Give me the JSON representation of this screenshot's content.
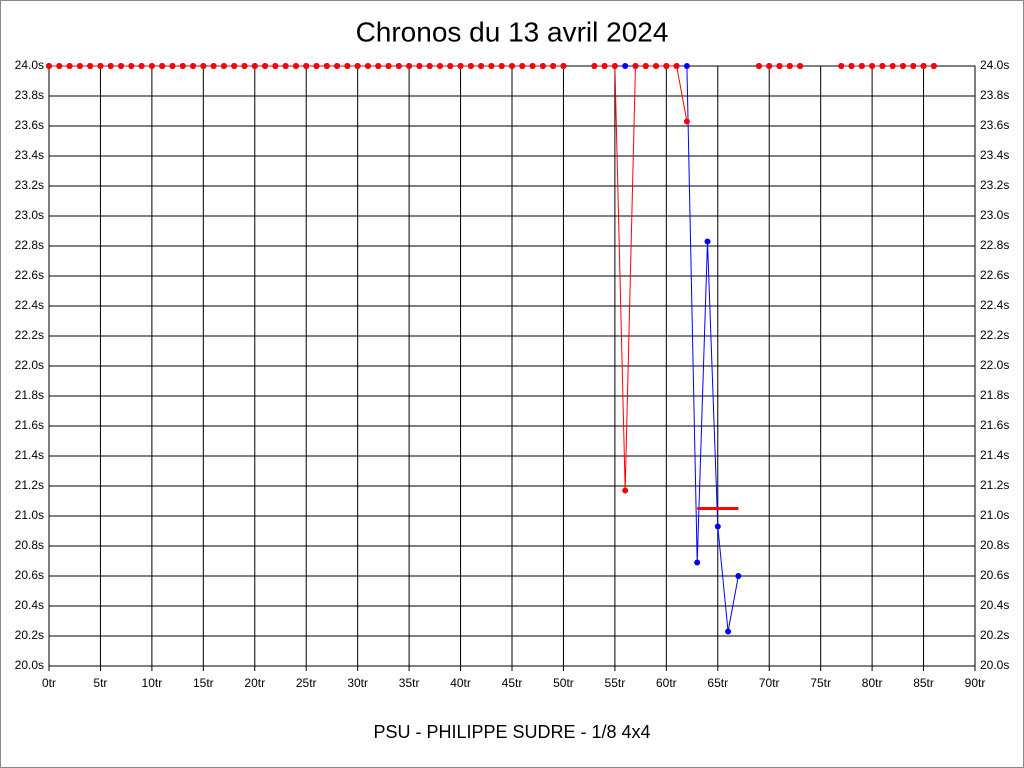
{
  "chart_data": {
    "type": "line",
    "title": "Chronos du 13 avril 2024",
    "xlabel": "PSU - PHILIPPE SUDRE - 1/8 4x4",
    "x": [
      0,
      1,
      2,
      3,
      4,
      5,
      6,
      7,
      8,
      9,
      10,
      11,
      12,
      13,
      14,
      15,
      16,
      17,
      18,
      19,
      20,
      21,
      22,
      23,
      24,
      25,
      26,
      27,
      28,
      29,
      30,
      31,
      32,
      33,
      34,
      35,
      36,
      37,
      38,
      39,
      40,
      41,
      42,
      43,
      44,
      45,
      46,
      47,
      48,
      49,
      50,
      51,
      52,
      53,
      54,
      55,
      56,
      57,
      58,
      59,
      60,
      61,
      62,
      63,
      64,
      65,
      66,
      67,
      68,
      69,
      70,
      71,
      72,
      73,
      74,
      75,
      76,
      77,
      78,
      79,
      80,
      81,
      82,
      83,
      84,
      85,
      86
    ],
    "series": [
      {
        "color": "#0000ff",
        "values": [
          24,
          24,
          24,
          24,
          24,
          24,
          24,
          24,
          24,
          24,
          24,
          24,
          24,
          24,
          24,
          24,
          24,
          24,
          24,
          24,
          24,
          24,
          24,
          24,
          24,
          24,
          24,
          24,
          24,
          24,
          24,
          24,
          24,
          24,
          24,
          24,
          24,
          24,
          24,
          24,
          24,
          24,
          24,
          24,
          24,
          24,
          24,
          24,
          24,
          24,
          24,
          null,
          null,
          24,
          24,
          24,
          24,
          24,
          24,
          24,
          24,
          24,
          24,
          20.69,
          22.83,
          20.93,
          20.23,
          20.6,
          null,
          24,
          24,
          24,
          24,
          24,
          null,
          null,
          null,
          24,
          24,
          24,
          24,
          24,
          24,
          24,
          24,
          24,
          24
        ]
      },
      {
        "color": "#ff0000",
        "values": [
          24,
          24,
          24,
          24,
          24,
          24,
          24,
          24,
          24,
          24,
          24,
          24,
          24,
          24,
          24,
          24,
          24,
          24,
          24,
          24,
          24,
          24,
          24,
          24,
          24,
          24,
          24,
          24,
          24,
          24,
          24,
          24,
          24,
          24,
          24,
          24,
          24,
          24,
          24,
          24,
          24,
          24,
          24,
          24,
          24,
          24,
          24,
          24,
          24,
          24,
          24,
          null,
          null,
          24,
          24,
          24,
          21.17,
          24,
          24,
          24,
          24,
          24,
          23.63,
          null,
          null,
          null,
          null,
          null,
          null,
          24,
          24,
          24,
          24,
          24,
          null,
          null,
          null,
          24,
          24,
          24,
          24,
          24,
          24,
          24,
          24,
          24,
          24
        ]
      }
    ],
    "average_line": {
      "value": 21.05,
      "x_start": 63,
      "x_end": 67,
      "color": "#ff0000"
    },
    "xlim": [
      0,
      90
    ],
    "xticks": [
      {
        "value": 0,
        "label": "0tr"
      },
      {
        "value": 5,
        "label": "5tr"
      },
      {
        "value": 10,
        "label": "10tr"
      },
      {
        "value": 15,
        "label": "15tr"
      },
      {
        "value": 20,
        "label": "20tr"
      },
      {
        "value": 25,
        "label": "25tr"
      },
      {
        "value": 30,
        "label": "30tr"
      },
      {
        "value": 35,
        "label": "35tr"
      },
      {
        "value": 40,
        "label": "40tr"
      },
      {
        "value": 45,
        "label": "45tr"
      },
      {
        "value": 50,
        "label": "50tr"
      },
      {
        "value": 55,
        "label": "55tr"
      },
      {
        "value": 60,
        "label": "60tr"
      },
      {
        "value": 65,
        "label": "65tr"
      },
      {
        "value": 70,
        "label": "70tr"
      },
      {
        "value": 75,
        "label": "75tr"
      },
      {
        "value": 80,
        "label": "80tr"
      },
      {
        "value": 85,
        "label": "85tr"
      },
      {
        "value": 90,
        "label": "90tr"
      }
    ],
    "ylim": [
      20,
      24
    ],
    "yticks": [
      {
        "value": 20,
        "label": "20.0s"
      },
      {
        "value": 20.2,
        "label": "20.2s"
      },
      {
        "value": 20.4,
        "label": "20.4s"
      },
      {
        "value": 20.6,
        "label": "20.6s"
      },
      {
        "value": 20.8,
        "label": "20.8s"
      },
      {
        "value": 21,
        "label": "21.0s"
      },
      {
        "value": 21.2,
        "label": "21.2s"
      },
      {
        "value": 21.4,
        "label": "21.4s"
      },
      {
        "value": 21.6,
        "label": "21.6s"
      },
      {
        "value": 21.8,
        "label": "21.8s"
      },
      {
        "value": 22,
        "label": "22.0s"
      },
      {
        "value": 22.2,
        "label": "22.2s"
      },
      {
        "value": 22.4,
        "label": "22.4s"
      },
      {
        "value": 22.6,
        "label": "22.6s"
      },
      {
        "value": 22.8,
        "label": "22.8s"
      },
      {
        "value": 23,
        "label": "23.0s"
      },
      {
        "value": 23.2,
        "label": "23.2s"
      },
      {
        "value": 23.4,
        "label": "23.4s"
      },
      {
        "value": 23.6,
        "label": "23.6s"
      },
      {
        "value": 23.8,
        "label": "23.8s"
      },
      {
        "value": 24,
        "label": "24.0s"
      }
    ],
    "grid": true
  }
}
